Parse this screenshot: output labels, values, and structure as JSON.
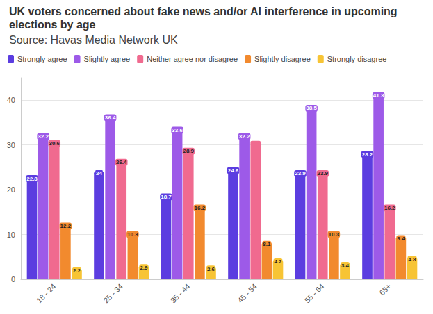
{
  "chart_data": {
    "type": "bar",
    "title": "UK voters concerned about fake news and/or AI interference in upcoming elections by age",
    "subtitle": "Source: Havas Media Network UK",
    "categories": [
      "18 - 24",
      "25 - 34",
      "35 - 44",
      "45 - 54",
      "55 - 64",
      "65+"
    ],
    "series": [
      {
        "name": "Strongly agree",
        "color": "#5b3de0",
        "values": [
          22.8,
          24,
          18.7,
          24.6,
          23.9,
          28.2
        ]
      },
      {
        "name": "Slightly agree",
        "color": "#9d5ae8",
        "values": [
          32.2,
          36.4,
          33.6,
          32.2,
          38.5,
          41.3
        ]
      },
      {
        "name": "Neither agree nor disagree",
        "color": "#f06a8f",
        "values": [
          30.6,
          26.4,
          28.9,
          30.9,
          23.9,
          16.2
        ]
      },
      {
        "name": "Slightly disagree",
        "color": "#f28a2e",
        "values": [
          12.2,
          10.3,
          16.2,
          8.1,
          10.3,
          9.4
        ]
      },
      {
        "name": "Strongly disagree",
        "color": "#f7c435",
        "values": [
          2.2,
          2.9,
          2.6,
          4.2,
          3.4,
          4.8
        ]
      }
    ],
    "ylim": [
      0,
      45
    ],
    "yticks": [
      0,
      10,
      20,
      30,
      40
    ],
    "grid": true,
    "legend": "top-left",
    "data_labels": true
  }
}
